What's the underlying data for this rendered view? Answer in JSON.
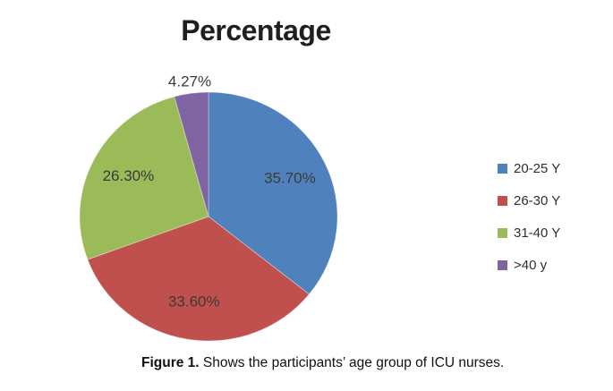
{
  "chart_data": {
    "type": "pie",
    "title": "Percentage",
    "slices": [
      {
        "label": "20-25 Y",
        "value": 35.7,
        "display": "35.70%",
        "color": "#4F81BD"
      },
      {
        "label": "26-30 Y",
        "value": 33.6,
        "display": "33.60%",
        "color": "#C0504D"
      },
      {
        "label": "31-40 Y",
        "value": 26.3,
        "display": "26.30%",
        "color": "#9BBB59"
      },
      {
        "label": ">40 y",
        "value": 4.27,
        "display": "4.27%",
        "color": "#8064A2"
      }
    ],
    "start_angle_deg": 0,
    "direction": "clockwise",
    "legend_position": "right",
    "data_labels": "percent-inside"
  },
  "caption": {
    "prefix": "Figure 1.",
    "text": " Shows the participants’ age group of ICU nurses."
  }
}
